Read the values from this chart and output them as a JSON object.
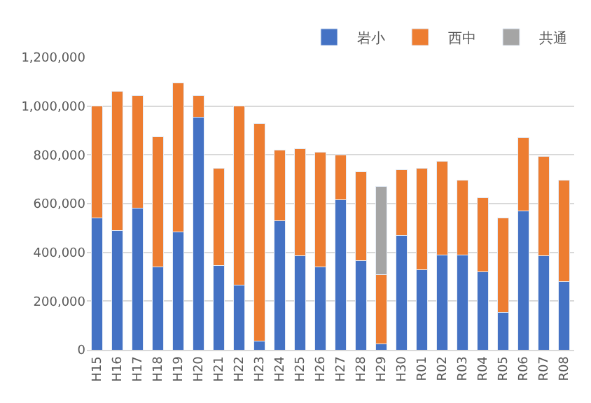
{
  "chart_data": {
    "type": "bar",
    "stacked": true,
    "categories": [
      "H15",
      "H16",
      "H17",
      "H18",
      "H19",
      "H20",
      "H21",
      "H22",
      "H23",
      "H24",
      "H25",
      "H26",
      "H27",
      "H28",
      "H29",
      "H30",
      "R01",
      "R02",
      "R03",
      "R04",
      "R05",
      "R06",
      "R07",
      "R08"
    ],
    "series": [
      {
        "name": "岩小",
        "color": "#4472c4",
        "values": [
          540000,
          490000,
          580000,
          340000,
          485000,
          955000,
          345000,
          265000,
          35000,
          530000,
          385000,
          340000,
          615000,
          365000,
          25000,
          470000,
          330000,
          390000,
          390000,
          320000,
          155000,
          570000,
          385000,
          280000
        ]
      },
      {
        "name": "西中",
        "color": "#ed7d31",
        "values": [
          460000,
          570000,
          465000,
          535000,
          610000,
          90000,
          400000,
          735000,
          895000,
          290000,
          440000,
          470000,
          185000,
          365000,
          285000,
          270000,
          415000,
          385000,
          305000,
          305000,
          385000,
          300000,
          410000,
          415000
        ]
      },
      {
        "name": "共通",
        "color": "#a5a5a5",
        "values": [
          null,
          null,
          null,
          null,
          null,
          null,
          null,
          null,
          null,
          null,
          null,
          null,
          null,
          null,
          360000,
          null,
          null,
          null,
          null,
          null,
          null,
          null,
          null,
          null
        ]
      }
    ],
    "ylim": [
      0,
      1200000
    ],
    "yticks": [
      {
        "value": 0,
        "label": "0"
      },
      {
        "value": 200000,
        "label": "200,000"
      },
      {
        "value": 400000,
        "label": "400,000"
      },
      {
        "value": 600000,
        "label": "600,000"
      },
      {
        "value": 800000,
        "label": "800,000"
      },
      {
        "value": 1000000,
        "label": "1,000,000"
      },
      {
        "value": 1200000,
        "label": "1,200,000"
      }
    ],
    "grid": "y",
    "legend": "top right"
  }
}
